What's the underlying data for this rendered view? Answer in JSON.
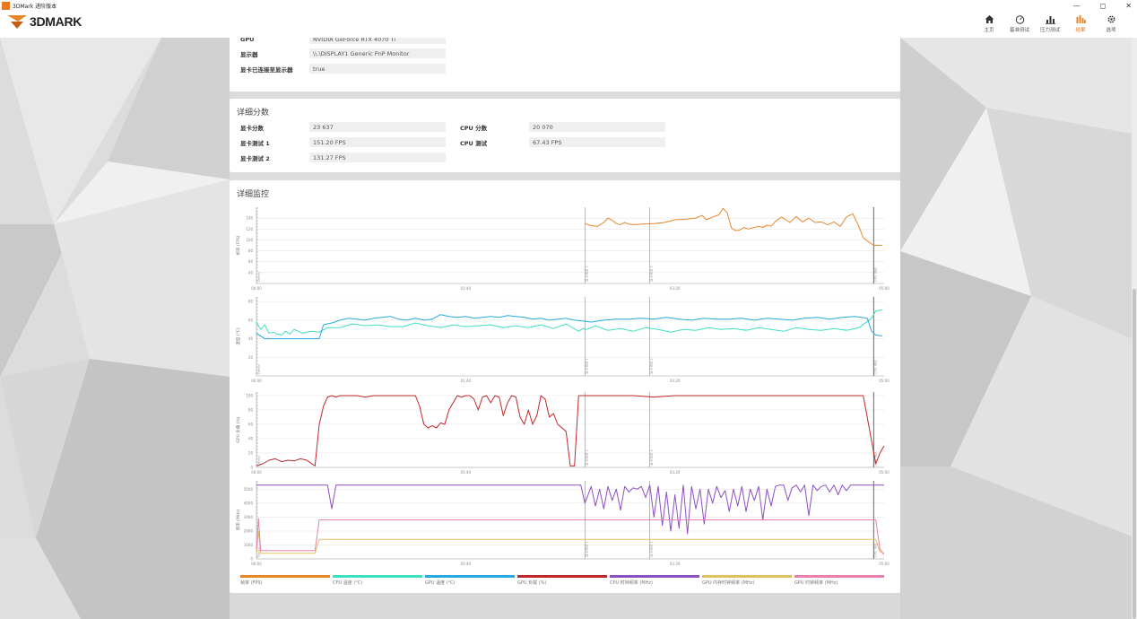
{
  "window": {
    "title": "3DMark 进阶版本"
  },
  "app": {
    "logo_text": "3DMARK"
  },
  "nav": [
    {
      "label": "主页",
      "icon": "home-icon"
    },
    {
      "label": "基准测试",
      "icon": "gauge-icon"
    },
    {
      "label": "压力测试",
      "icon": "bar-chart-icon"
    },
    {
      "label": "结果",
      "icon": "results-icon"
    },
    {
      "label": "选项",
      "icon": "gear-icon"
    }
  ],
  "system_info": {
    "rows": [
      {
        "label": "GPU",
        "value": "NVIDIA GeForce RTX 4070 Ti"
      },
      {
        "label": "显示器",
        "value": "\\\\.\\DISPLAY1 Generic PnP Monitor"
      },
      {
        "label": "显卡已连接至显示器",
        "value": "true"
      }
    ]
  },
  "detailed_scores": {
    "title": "详细分数",
    "left": [
      {
        "label": "显卡分数",
        "value": "23 637"
      },
      {
        "label": "显卡测试 1",
        "value": "151.20 FPS"
      },
      {
        "label": "显卡测试 2",
        "value": "131.27 FPS"
      }
    ],
    "right": [
      {
        "label": "CPU 分数",
        "value": "20 070"
      },
      {
        "label": "CPU 测试",
        "value": "67.43 FPS"
      }
    ]
  },
  "monitoring": {
    "title": "详细监控",
    "x_ticks": [
      "00:00",
      "01:40",
      "03:20",
      "05:00"
    ],
    "markers": [
      "Demo",
      "显卡测试 1",
      "显卡测试 2",
      "CPU 测试"
    ],
    "legend": [
      {
        "label": "帧率 (FPS)",
        "color": "#e8862a"
      },
      {
        "label": "CPU 温度 (°C)",
        "color": "#3ee0c0"
      },
      {
        "label": "GPU 温度 (°C)",
        "color": "#2aa9e0"
      },
      {
        "label": "GPU 负载 (%)",
        "color": "#c0282a"
      },
      {
        "label": "CPU 时钟频率 (MHz)",
        "color": "#8d4fc1"
      },
      {
        "label": "GPU 内存时钟频率 (MHz)",
        "color": "#e0c060"
      },
      {
        "label": "GPU 时钟频率 (MHz)",
        "color": "#e880b0"
      }
    ]
  },
  "chart_data": [
    {
      "type": "line",
      "ylabel": "帧率 (FPS)",
      "yticks": [
        40,
        60,
        80,
        100,
        120,
        140
      ],
      "ylim": [
        20,
        160
      ],
      "xlim": [
        0,
        300
      ],
      "series": [
        {
          "name": "帧率 (FPS)",
          "color": "#e8862a",
          "x": [
            157,
            160,
            163,
            166,
            168,
            170,
            172,
            174,
            176,
            178,
            180,
            185,
            190,
            195,
            200,
            205,
            210,
            213,
            215,
            218,
            221,
            223,
            225,
            227,
            229,
            231,
            233,
            235,
            237,
            240,
            242,
            244,
            246,
            248,
            251,
            255,
            258,
            261,
            264,
            267,
            270,
            273,
            276,
            279,
            282,
            285,
            288,
            290,
            292,
            295,
            297,
            298,
            299
          ],
          "y": [
            130,
            126,
            125,
            132,
            140,
            136,
            130,
            128,
            132,
            129,
            128,
            129,
            130,
            132,
            137,
            138,
            140,
            145,
            137,
            142,
            146,
            158,
            150,
            122,
            117,
            118,
            123,
            120,
            122,
            125,
            123,
            127,
            125,
            134,
            142,
            132,
            143,
            133,
            140,
            132,
            133,
            128,
            133,
            125,
            142,
            148,
            124,
            104,
            98,
            90,
            90,
            90,
            90
          ]
        }
      ]
    },
    {
      "type": "line",
      "ylabel": "温度 (°C)",
      "yticks": [
        20,
        40,
        60,
        80
      ],
      "ylim": [
        0,
        85
      ],
      "xlim": [
        0,
        300
      ],
      "series": [
        {
          "name": "CPU 温度 (°C)",
          "color": "#3ee0c0",
          "x": [
            0,
            2,
            4,
            6,
            8,
            10,
            12,
            14,
            16,
            18,
            22,
            26,
            30,
            34,
            40,
            46,
            52,
            58,
            64,
            70,
            76,
            82,
            88,
            94,
            100,
            106,
            112,
            118,
            124,
            130,
            136,
            142,
            148,
            154,
            156,
            158,
            162,
            168,
            174,
            180,
            186,
            192,
            198,
            204,
            210,
            216,
            222,
            228,
            234,
            240,
            246,
            252,
            258,
            264,
            270,
            276,
            282,
            288,
            294,
            296,
            299
          ],
          "y": [
            58,
            50,
            55,
            46,
            47,
            45,
            44,
            48,
            45,
            50,
            46,
            48,
            47,
            52,
            52,
            56,
            54,
            55,
            53,
            53,
            57,
            54,
            52,
            55,
            53,
            54,
            55,
            52,
            54,
            52,
            55,
            51,
            56,
            48,
            51,
            50,
            54,
            49,
            51,
            48,
            52,
            50,
            47,
            50,
            49,
            52,
            50,
            51,
            49,
            52,
            50,
            48,
            52,
            50,
            49,
            51,
            49,
            52,
            62,
            70,
            71
          ]
        },
        {
          "name": "GPU 温度 (°C)",
          "color": "#2aa9e0",
          "x": [
            0,
            4,
            8,
            12,
            16,
            20,
            24,
            28,
            30,
            32,
            36,
            40,
            44,
            48,
            52,
            56,
            60,
            64,
            68,
            72,
            76,
            80,
            84,
            88,
            92,
            96,
            100,
            104,
            108,
            112,
            116,
            120,
            124,
            128,
            132,
            136,
            140,
            144,
            148,
            152,
            156,
            160,
            166,
            172,
            178,
            184,
            190,
            196,
            202,
            208,
            214,
            220,
            226,
            232,
            238,
            244,
            250,
            256,
            262,
            268,
            274,
            280,
            286,
            292,
            294,
            296,
            299
          ],
          "y": [
            46,
            40,
            40,
            40,
            40,
            40,
            40,
            40,
            40,
            55,
            57,
            60,
            62,
            61,
            60,
            62,
            63,
            64,
            61,
            60,
            62,
            60,
            61,
            66,
            64,
            63,
            64,
            62,
            63,
            64,
            63,
            65,
            64,
            63,
            61,
            62,
            60,
            61,
            62,
            60,
            59,
            58,
            60,
            61,
            61,
            62,
            61,
            63,
            61,
            60,
            62,
            61,
            61,
            62,
            60,
            62,
            61,
            60,
            62,
            63,
            61,
            63,
            64,
            62,
            48,
            44,
            43
          ]
        }
      ]
    },
    {
      "type": "line",
      "ylabel": "GPU 负载 (%)",
      "yticks": [
        0,
        20,
        40,
        60,
        80,
        100
      ],
      "ylim": [
        0,
        105
      ],
      "xlim": [
        0,
        300
      ],
      "series": [
        {
          "name": "GPU 负载 (%)",
          "color": "#c0282a",
          "x": [
            0,
            3,
            6,
            9,
            12,
            15,
            18,
            21,
            24,
            26,
            28,
            30,
            32,
            34,
            36,
            38,
            40,
            44,
            48,
            52,
            56,
            60,
            64,
            70,
            76,
            78,
            80,
            82,
            84,
            86,
            88,
            90,
            92,
            94,
            96,
            98,
            100,
            102,
            104,
            106,
            108,
            110,
            112,
            114,
            116,
            118,
            120,
            122,
            124,
            126,
            128,
            130,
            132,
            134,
            136,
            138,
            140,
            142,
            144,
            146,
            148,
            150,
            152,
            154,
            156,
            158,
            160,
            170,
            180,
            190,
            200,
            210,
            220,
            230,
            240,
            250,
            260,
            270,
            280,
            290,
            296,
            298,
            300
          ],
          "y": [
            2,
            5,
            10,
            12,
            8,
            10,
            9,
            12,
            10,
            6,
            2,
            60,
            85,
            98,
            100,
            98,
            100,
            100,
            100,
            98,
            100,
            100,
            100,
            100,
            100,
            85,
            60,
            55,
            58,
            55,
            62,
            60,
            80,
            90,
            100,
            98,
            100,
            100,
            95,
            80,
            98,
            100,
            90,
            100,
            98,
            72,
            90,
            100,
            98,
            70,
            60,
            80,
            60,
            72,
            100,
            95,
            70,
            75,
            60,
            55,
            50,
            2,
            2,
            100,
            100,
            100,
            100,
            100,
            100,
            98,
            100,
            100,
            100,
            100,
            100,
            100,
            100,
            100,
            100,
            100,
            5,
            20,
            30
          ]
        }
      ]
    },
    {
      "type": "line",
      "ylabel": "频率 (MHz)",
      "yticks": [
        0,
        1000,
        2000,
        3000,
        4000,
        5000
      ],
      "ylim": [
        0,
        5600
      ],
      "xlim": [
        0,
        300
      ],
      "series": [
        {
          "name": "CPU 时钟频率 (MHz)",
          "color": "#8d4fc1",
          "x": [
            0,
            20,
            34,
            36,
            38,
            40,
            60,
            80,
            100,
            120,
            140,
            150,
            155,
            157,
            160,
            162,
            164,
            166,
            168,
            170,
            172,
            174,
            176,
            178,
            180,
            182,
            184,
            186,
            188,
            190,
            192,
            194,
            196,
            198,
            200,
            202,
            204,
            206,
            208,
            210,
            212,
            214,
            216,
            218,
            220,
            222,
            224,
            226,
            228,
            230,
            232,
            234,
            236,
            238,
            240,
            242,
            244,
            246,
            248,
            250,
            252,
            254,
            256,
            258,
            260,
            262,
            264,
            266,
            268,
            270,
            272,
            274,
            276,
            278,
            280,
            282,
            284,
            286,
            288,
            290,
            292,
            294,
            296,
            300
          ],
          "y": [
            5300,
            5300,
            5300,
            3600,
            5300,
            5300,
            5300,
            5300,
            5300,
            5300,
            5300,
            5300,
            5300,
            4000,
            5200,
            3800,
            5000,
            3600,
            5200,
            4200,
            5000,
            3500,
            5200,
            4800,
            5100,
            5000,
            5200,
            4400,
            5300,
            3000,
            5200,
            2400,
            4800,
            2000,
            4600,
            2200,
            5300,
            1800,
            5200,
            3600,
            5000,
            2500,
            5000,
            4000,
            5200,
            4400,
            4900,
            3400,
            5000,
            3800,
            5200,
            3400,
            5000,
            4200,
            5200,
            2800,
            5000,
            3800,
            5200,
            5300,
            5300,
            4200,
            5100,
            5300,
            4800,
            5300,
            3100,
            5300,
            4900,
            5200,
            5300,
            4800,
            5300,
            4600,
            5300,
            4900,
            5300,
            5300,
            5300,
            5300,
            5300,
            5300,
            5300,
            5300
          ]
        },
        {
          "name": "GPU 内存时钟频率 (MHz)",
          "color": "#e0c060",
          "x": [
            0,
            1,
            2,
            26,
            28,
            30,
            100,
            200,
            296,
            298,
            300
          ],
          "y": [
            400,
            2000,
            400,
            400,
            400,
            1400,
            1400,
            1400,
            1400,
            500,
            400
          ]
        },
        {
          "name": "GPU 时钟频率 (MHz)",
          "color": "#e880b0",
          "x": [
            0,
            1,
            2,
            26,
            28,
            30,
            100,
            200,
            296,
            298,
            300
          ],
          "y": [
            600,
            2900,
            600,
            600,
            600,
            2800,
            2800,
            2800,
            2800,
            700,
            300
          ]
        }
      ]
    }
  ]
}
